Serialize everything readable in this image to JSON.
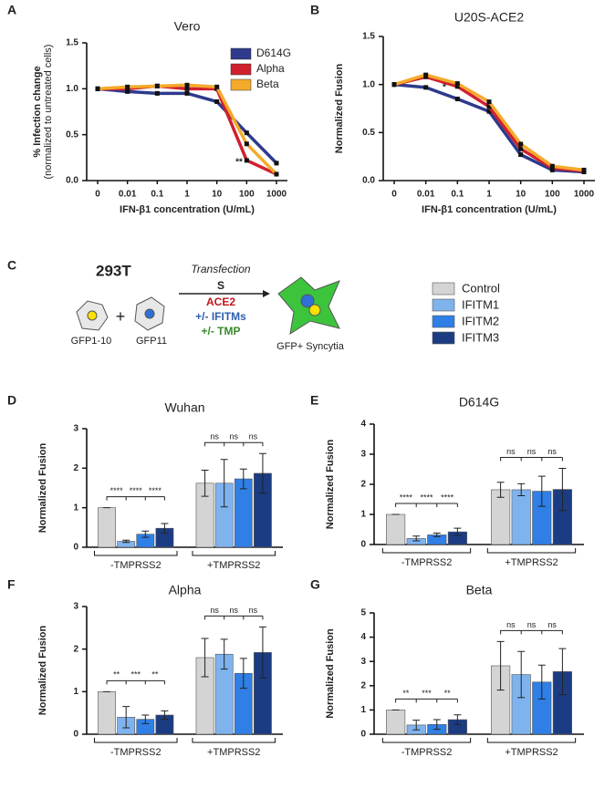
{
  "chart_data": [
    {
      "type": "line",
      "panel": "A",
      "title": "Vero",
      "ylabel": [
        "% Infection change",
        "(normalized to untreated cells)"
      ],
      "xlabel": "IFN-β1 concentration (U/mL)",
      "categories": [
        "0",
        "0.01",
        "0.1",
        "1",
        "10",
        "100",
        "1000"
      ],
      "series": [
        {
          "name": "D614G",
          "color": "#2e3a8c",
          "values": [
            1.0,
            0.97,
            0.95,
            0.95,
            0.86,
            0.52,
            0.19
          ]
        },
        {
          "name": "Alpha",
          "color": "#d0202e",
          "values": [
            1.0,
            1.0,
            1.03,
            1.0,
            1.0,
            0.22,
            0.07
          ]
        },
        {
          "name": "Beta",
          "color": "#f4aa2a",
          "values": [
            1.0,
            1.02,
            1.03,
            1.04,
            1.02,
            0.4,
            0.07
          ]
        }
      ],
      "ylim": [
        0,
        1.5
      ],
      "yticks": [
        {
          "value": 0,
          "label": "0.0"
        },
        {
          "value": 0.5,
          "label": "0.5"
        },
        {
          "value": 1,
          "label": "1.0"
        },
        {
          "value": 1.5,
          "label": "1.5"
        }
      ],
      "legend": "upper right",
      "annotations": [
        "**"
      ]
    },
    {
      "type": "line",
      "panel": "B",
      "title": "U20S-ACE2",
      "ylabel": [
        "Normalized Fusion"
      ],
      "xlabel": "IFN-β1 concentration (U/mL)",
      "categories": [
        "0",
        "0.01",
        "0.1",
        "1",
        "10",
        "100",
        "1000"
      ],
      "series": [
        {
          "name": "D614G",
          "color": "#2e3a8c",
          "values": [
            1.0,
            0.97,
            0.85,
            0.72,
            0.27,
            0.11,
            0.09
          ]
        },
        {
          "name": "Alpha",
          "color": "#d0202e",
          "values": [
            1.0,
            1.08,
            0.98,
            0.77,
            0.33,
            0.13,
            0.1
          ]
        },
        {
          "name": "Beta",
          "color": "#f4aa2a",
          "values": [
            1.0,
            1.1,
            1.01,
            0.82,
            0.38,
            0.15,
            0.11
          ]
        }
      ],
      "ylim": [
        0,
        1.5
      ],
      "yticks": [
        {
          "value": 0,
          "label": "0.0"
        },
        {
          "value": 0.5,
          "label": "0.5"
        },
        {
          "value": 1,
          "label": "1.0"
        },
        {
          "value": 1.5,
          "label": "1.5"
        }
      ],
      "annotations": [
        "*"
      ]
    },
    {
      "type": "bar",
      "panel": "D",
      "title": "Wuhan",
      "ylabel": [
        "Normalized Fusion"
      ],
      "groups": [
        "-TMPRSS2",
        "+TMPRSS2"
      ],
      "series": [
        {
          "name": "Control",
          "color": "#d4d4d4",
          "values": [
            1.0,
            1.62
          ],
          "errors": [
            0,
            0.33
          ]
        },
        {
          "name": "IFITM1",
          "color": "#7fb3ee",
          "values": [
            0.15,
            1.62
          ],
          "errors": [
            0.03,
            0.6
          ]
        },
        {
          "name": "IFITM2",
          "color": "#2f7fe6",
          "values": [
            0.33,
            1.73
          ],
          "errors": [
            0.08,
            0.25
          ]
        },
        {
          "name": "IFITM3",
          "color": "#1b3c82",
          "values": [
            0.48,
            1.87
          ],
          "errors": [
            0.12,
            0.5
          ]
        }
      ],
      "ylim": [
        0,
        3
      ],
      "yticks": [
        0,
        1,
        2,
        3
      ],
      "significance": [
        [
          "****",
          "****",
          "****"
        ],
        [
          "ns",
          "ns",
          "ns"
        ]
      ]
    },
    {
      "type": "bar",
      "panel": "E",
      "title": "D614G",
      "ylabel": [
        "Normalized Fusion"
      ],
      "groups": [
        "-TMPRSS2",
        "+TMPRSS2"
      ],
      "series": [
        {
          "name": "Control",
          "color": "#d4d4d4",
          "values": [
            1.0,
            1.82
          ],
          "errors": [
            0,
            0.25
          ]
        },
        {
          "name": "IFITM1",
          "color": "#7fb3ee",
          "values": [
            0.2,
            1.82
          ],
          "errors": [
            0.08,
            0.2
          ]
        },
        {
          "name": "IFITM2",
          "color": "#2f7fe6",
          "values": [
            0.32,
            1.77
          ],
          "errors": [
            0.06,
            0.5
          ]
        },
        {
          "name": "IFITM3",
          "color": "#1b3c82",
          "values": [
            0.42,
            1.83
          ],
          "errors": [
            0.12,
            0.7
          ]
        }
      ],
      "ylim": [
        0,
        4
      ],
      "yticks": [
        0,
        1,
        2,
        3,
        4
      ],
      "significance": [
        [
          "****",
          "****",
          "****"
        ],
        [
          "ns",
          "ns",
          "ns"
        ]
      ]
    },
    {
      "type": "bar",
      "panel": "F",
      "title": "Alpha",
      "ylabel": [
        "Normalized Fusion"
      ],
      "groups": [
        "-TMPRSS2",
        "+TMPRSS2"
      ],
      "series": [
        {
          "name": "Control",
          "color": "#d4d4d4",
          "values": [
            1.0,
            1.8
          ],
          "errors": [
            0,
            0.45
          ]
        },
        {
          "name": "IFITM1",
          "color": "#7fb3ee",
          "values": [
            0.4,
            1.88
          ],
          "errors": [
            0.25,
            0.35
          ]
        },
        {
          "name": "IFITM2",
          "color": "#2f7fe6",
          "values": [
            0.35,
            1.43
          ],
          "errors": [
            0.1,
            0.35
          ]
        },
        {
          "name": "IFITM3",
          "color": "#1b3c82",
          "values": [
            0.45,
            1.92
          ],
          "errors": [
            0.1,
            0.6
          ]
        }
      ],
      "ylim": [
        0,
        3
      ],
      "yticks": [
        0,
        1,
        2,
        3
      ],
      "significance": [
        [
          "**",
          "***",
          "**"
        ],
        [
          "ns",
          "ns",
          "ns"
        ]
      ]
    },
    {
      "type": "bar",
      "panel": "G",
      "title": "Beta",
      "ylabel": [
        "Normalized Fusion"
      ],
      "groups": [
        "-TMPRSS2",
        "+TMPRSS2"
      ],
      "series": [
        {
          "name": "Control",
          "color": "#d4d4d4",
          "values": [
            1.0,
            2.82
          ],
          "errors": [
            0,
            1.0
          ]
        },
        {
          "name": "IFITM1",
          "color": "#7fb3ee",
          "values": [
            0.38,
            2.46
          ],
          "errors": [
            0.2,
            0.95
          ]
        },
        {
          "name": "IFITM2",
          "color": "#2f7fe6",
          "values": [
            0.4,
            2.15
          ],
          "errors": [
            0.2,
            0.7
          ]
        },
        {
          "name": "IFITM3",
          "color": "#1b3c82",
          "values": [
            0.6,
            2.58
          ],
          "errors": [
            0.2,
            0.95
          ]
        }
      ],
      "ylim": [
        0,
        5
      ],
      "yticks": [
        0,
        1,
        2,
        3,
        4,
        5
      ],
      "significance": [
        [
          "**",
          "***",
          "**"
        ],
        [
          "ns",
          "ns",
          "ns"
        ]
      ]
    }
  ],
  "diagram": {
    "panel": "C",
    "cell_line": "293T",
    "method": "Transfection",
    "spike": "S",
    "receptor": "ACE2",
    "ifitm": "+/- IFITMs",
    "tmp": "+/- TMP",
    "cell1": "GFP1-10",
    "cell2": "GFP11",
    "result": "GFP+ Syncytia",
    "plus": "+"
  }
}
